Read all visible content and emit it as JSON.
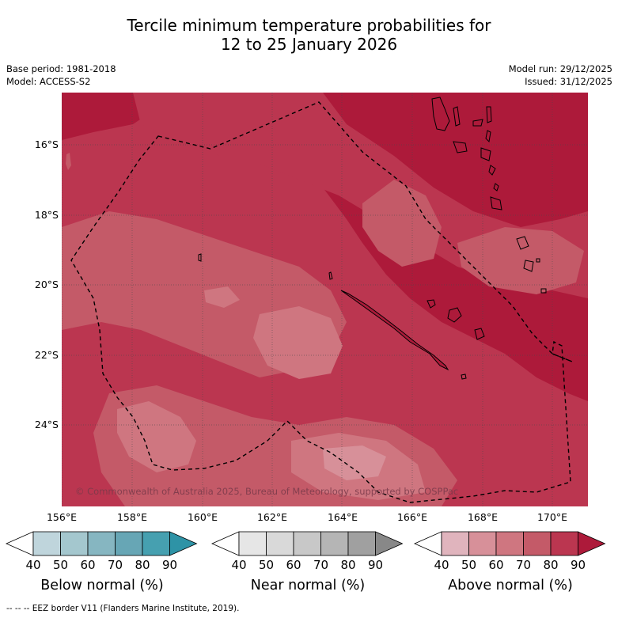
{
  "title": {
    "line1": "Tercile minimum temperature probabilities for",
    "line2": "12 to 25 January 2026"
  },
  "meta": {
    "base_period": "Base period: 1981-2018",
    "model": "Model: ACCESS-S2",
    "model_run": "Model run: 29/12/2025",
    "issued": "Issued: 31/12/2025"
  },
  "axes": {
    "lat_labels": [
      "16°S",
      "18°S",
      "20°S",
      "22°S",
      "24°S"
    ],
    "lon_labels": [
      "156°E",
      "158°E",
      "160°E",
      "162°E",
      "164°E",
      "166°E",
      "168°E",
      "170°E"
    ]
  },
  "copyright": "© Commonwealth of Australia 2025, Bureau of Meteorology, supported by COSPPac",
  "colorbars": [
    {
      "label": "Below normal (%)",
      "ticks": [
        "40",
        "50",
        "60",
        "70",
        "80",
        "90"
      ],
      "colors": [
        "#ffffff",
        "#bfd5dc",
        "#a4c7ce",
        "#86b6c1",
        "#67a6b5",
        "#46a0b0",
        "#2e93a6"
      ]
    },
    {
      "label": "Near normal (%)",
      "ticks": [
        "40",
        "50",
        "60",
        "70",
        "80",
        "90"
      ],
      "colors": [
        "#ffffff",
        "#e6e6e6",
        "#d9d9d9",
        "#c8c8c8",
        "#b5b5b5",
        "#a0a0a0",
        "#888888"
      ]
    },
    {
      "label": "Above normal (%)",
      "ticks": [
        "40",
        "50",
        "60",
        "70",
        "80",
        "90"
      ],
      "colors": [
        "#ffffff",
        "#e0b4bd",
        "#d79099",
        "#cf7680",
        "#c45a68",
        "#bb3650",
        "#ad1a3a"
      ]
    }
  ],
  "footnote": "--  --  -- EEZ border V11 (Flanders Marine Institute, 2019).",
  "colors": {
    "above_90": "#ad1a3a",
    "above_80": "#bb3650",
    "above_70": "#c45a68",
    "above_60": "#cf7680",
    "above_50": "#d79099"
  }
}
